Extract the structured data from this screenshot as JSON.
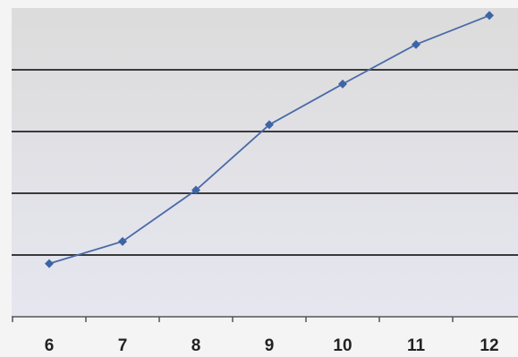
{
  "chart_data": {
    "type": "line",
    "title": "",
    "xlabel": "",
    "ylabel": "",
    "x": [
      6,
      7,
      8,
      9,
      10,
      11,
      12
    ],
    "series": [
      {
        "values": [
          0.86,
          1.22,
          2.05,
          3.11,
          3.77,
          4.41,
          4.88
        ]
      }
    ],
    "ylim": [
      0,
      5
    ],
    "y_gridlines": [
      1,
      2,
      3,
      4
    ],
    "grid": true,
    "y_tick_labels_shown": false,
    "legend": "none",
    "colors": {
      "line": "#4a6aa8",
      "marker": "#3e64a6",
      "gridline": "#3a3a3a",
      "plot_top": "#dcdcdc",
      "plot_bottom": "#e6e6f0",
      "axis": "#555555"
    },
    "marker": "diamond"
  }
}
